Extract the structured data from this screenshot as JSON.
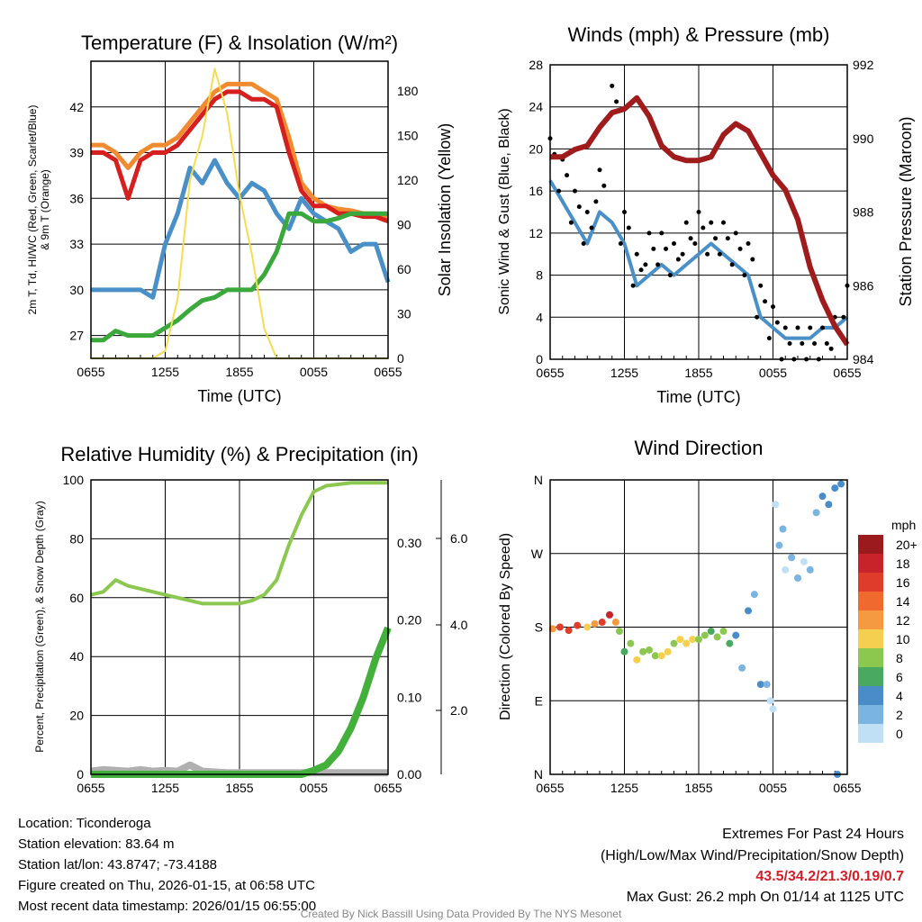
{
  "chart_data": [
    {
      "type": "line",
      "title": "Temperature (F) & Insolation (W/m²)",
      "xlabel": "Time (UTC)",
      "ylabel": "2m T, Td, HI/WC (Red, Green, Scarlet/Blue) & 9m T (Orange)",
      "y2label": "Solar Insolation (Yellow)",
      "xticks": [
        "0655",
        "1255",
        "1855",
        "0055",
        "0655"
      ],
      "yticks": [
        27,
        30,
        33,
        36,
        39,
        42
      ],
      "y2ticks": [
        0,
        30,
        60,
        90,
        120,
        150,
        180
      ],
      "ylim": [
        25.5,
        45
      ],
      "y2lim": [
        0,
        200
      ],
      "series": [
        {
          "name": "9m T",
          "color": "#f28a30",
          "axis": "left",
          "values": [
            39.5,
            39.5,
            39,
            38,
            39,
            39.5,
            39.5,
            40,
            41,
            42,
            43,
            43.5,
            43.5,
            43.5,
            43,
            42.5,
            40,
            37,
            36,
            35.5,
            35.3,
            35.2,
            35,
            35,
            34.8
          ]
        },
        {
          "name": "2m T",
          "color": "#d62020",
          "axis": "left",
          "values": [
            39,
            39,
            38.5,
            36,
            38.5,
            39,
            39,
            39.5,
            40.5,
            41.5,
            42.5,
            43,
            43,
            42.5,
            42.5,
            42,
            39,
            36.5,
            35.5,
            35.5,
            35,
            35,
            34.8,
            34.8,
            34.5
          ]
        },
        {
          "name": "WC",
          "color": "#4a90c8",
          "axis": "left",
          "values": [
            30,
            30,
            30,
            30,
            30,
            29.5,
            33,
            35,
            38,
            37,
            38.5,
            37,
            36,
            37,
            36.5,
            35,
            34,
            36,
            35,
            34.5,
            34,
            32.5,
            33,
            33,
            30.5
          ]
        },
        {
          "name": "Td",
          "color": "#3aa83a",
          "axis": "left",
          "values": [
            26.7,
            26.7,
            27.3,
            27,
            27,
            27,
            27.5,
            28,
            28.7,
            29.3,
            29.5,
            30,
            30,
            30,
            31,
            32.5,
            35,
            35,
            34.5,
            34.5,
            34.7,
            35,
            35,
            35,
            35
          ]
        },
        {
          "name": "Insolation",
          "color": "#f5dc50",
          "axis": "right",
          "values": [
            0,
            0,
            0,
            0,
            0,
            0,
            5,
            40,
            120,
            150,
            195,
            165,
            110,
            70,
            20,
            0,
            0,
            0,
            0,
            0,
            0,
            0,
            0,
            0,
            0
          ]
        }
      ]
    },
    {
      "type": "line",
      "title": "Winds (mph) & Pressure (mb)",
      "xlabel": "Time (UTC)",
      "ylabel": "Sonic Wind & Gust (Blue, Black)",
      "y2label": "Station Pressure (Maroon)",
      "xticks": [
        "0655",
        "1255",
        "1855",
        "0055",
        "0655"
      ],
      "yticks": [
        0,
        4,
        8,
        12,
        16,
        20,
        24,
        28
      ],
      "y2ticks": [
        984,
        986,
        988,
        990,
        992
      ],
      "ylim": [
        0,
        28
      ],
      "y2lim": [
        984,
        992
      ],
      "series": [
        {
          "name": "Wind",
          "color": "#4a90c8",
          "axis": "left",
          "values": [
            17,
            15,
            13,
            11,
            14,
            13,
            11,
            7,
            8,
            9,
            8,
            9,
            10,
            11,
            10,
            9,
            8,
            4,
            3,
            2,
            2,
            2,
            3,
            3,
            4
          ]
        },
        {
          "name": "Gust",
          "color": "#000000",
          "axis": "left",
          "type": "scatter",
          "values": [
            21,
            19,
            16,
            14,
            18,
            26,
            14,
            10,
            12,
            12,
            11,
            13,
            14,
            13,
            13,
            12,
            11,
            7,
            5,
            3,
            3,
            3,
            3,
            4,
            7
          ]
        },
        {
          "name": "Pressure",
          "color": "#a01c1c",
          "axis": "right",
          "values": [
            989.5,
            989.5,
            989.7,
            989.8,
            990.3,
            990.7,
            990.8,
            991.1,
            990.6,
            989.8,
            989.5,
            989.4,
            989.4,
            989.5,
            990.1,
            990.4,
            990.2,
            989.6,
            989,
            988.6,
            987.8,
            986.5,
            985.6,
            984.9,
            984.4
          ]
        }
      ]
    },
    {
      "type": "line",
      "title": "Relative Humidity (%) & Precipitation (in)",
      "ylabel": "Percent, Precipitation (Green), & Snow Depth (Gray)",
      "xticks": [
        "0655",
        "1255",
        "1855",
        "0055",
        "0655"
      ],
      "yticks": [
        0,
        20,
        40,
        60,
        80,
        100
      ],
      "y2ticks": [
        "0.00",
        "0.10",
        "0.20",
        "0.30"
      ],
      "y3ticks": [
        "2.0",
        "4.0",
        "6.0"
      ],
      "ylim": [
        0,
        100
      ],
      "y2lim": [
        0,
        0.3817
      ],
      "series": [
        {
          "name": "RH",
          "color": "#8cc850",
          "axis": "left",
          "values": [
            61,
            62,
            66,
            64,
            63,
            62,
            61,
            60,
            59,
            58,
            58,
            58,
            58,
            59,
            61,
            66,
            78,
            88,
            96,
            98,
            98.5,
            99,
            99,
            99,
            99
          ]
        },
        {
          "name": "Snow Depth",
          "color": "#b0b0b0",
          "axis": "right",
          "values": [
            0.004,
            0.006,
            0.005,
            0.004,
            0.006,
            0.004,
            0.005,
            0.004,
            0.012,
            0.004,
            0.003,
            0.002,
            0.002,
            0.002,
            0.002,
            0.002,
            0.002,
            0.002,
            0.002,
            0.002,
            0.002,
            0.002,
            0.002,
            0.002,
            0.002
          ]
        },
        {
          "name": "Precipitation",
          "color": "#44b03c",
          "axis": "right",
          "values": [
            0,
            0,
            0,
            0,
            0,
            0,
            0,
            0,
            0,
            0,
            0,
            0,
            0,
            0,
            0,
            0,
            0,
            0,
            0.005,
            0.012,
            0.03,
            0.06,
            0.1,
            0.15,
            0.19
          ]
        }
      ]
    },
    {
      "type": "scatter",
      "title": "Wind Direction",
      "ylabel": "Direction (Colored By Speed)",
      "xticks": [
        "0655",
        "1255",
        "1855",
        "0055",
        "0655"
      ],
      "yticks": [
        "N",
        "E",
        "S",
        "W",
        "N"
      ],
      "ylim": [
        0,
        360
      ],
      "colorbar": {
        "unit": "mph",
        "labels": [
          "20+",
          "18",
          "16",
          "14",
          "12",
          "10",
          "8",
          "6",
          "4",
          "2",
          "0"
        ],
        "colors": [
          "#9a1a1e",
          "#c8232a",
          "#e03c2c",
          "#f06a30",
          "#f59a40",
          "#f5d050",
          "#8cc850",
          "#4aa860",
          "#4a8cc8",
          "#7ab4e0",
          "#bfe0f5"
        ]
      },
      "points": [
        [
          0.2,
          178,
          12
        ],
        [
          0.8,
          180,
          16
        ],
        [
          1.5,
          176,
          17
        ],
        [
          2.2,
          182,
          16
        ],
        [
          3,
          180,
          11
        ],
        [
          3.6,
          184,
          13
        ],
        [
          4.2,
          186,
          17
        ],
        [
          4.8,
          195,
          18
        ],
        [
          5.3,
          186,
          12
        ],
        [
          5.6,
          175,
          8
        ],
        [
          6,
          150,
          6
        ],
        [
          6.5,
          160,
          8
        ],
        [
          7,
          140,
          10
        ],
        [
          7.5,
          150,
          8
        ],
        [
          8,
          152,
          9
        ],
        [
          8.5,
          145,
          9
        ],
        [
          9,
          145,
          10
        ],
        [
          9.5,
          150,
          11
        ],
        [
          10,
          160,
          9
        ],
        [
          10.5,
          165,
          10
        ],
        [
          11,
          160,
          10
        ],
        [
          11.5,
          165,
          11
        ],
        [
          12,
          165,
          9
        ],
        [
          12.5,
          170,
          8
        ],
        [
          13,
          175,
          7
        ],
        [
          13.5,
          168,
          9
        ],
        [
          14,
          175,
          8
        ],
        [
          14.5,
          160,
          6
        ],
        [
          15,
          170,
          4
        ],
        [
          15.5,
          130,
          3
        ],
        [
          16,
          200,
          4
        ],
        [
          16.5,
          220,
          3
        ],
        [
          17,
          110,
          4
        ],
        [
          17.5,
          110,
          2
        ],
        [
          17.8,
          90,
          1
        ],
        [
          18,
          80,
          1
        ],
        [
          18.2,
          330,
          1
        ],
        [
          18.5,
          280,
          2
        ],
        [
          18.8,
          300,
          2
        ],
        [
          19,
          250,
          1
        ],
        [
          19.5,
          265,
          3
        ],
        [
          20,
          240,
          2
        ],
        [
          20.5,
          260,
          1
        ],
        [
          21,
          250,
          2
        ],
        [
          21.5,
          320,
          3
        ],
        [
          22,
          340,
          4
        ],
        [
          22.5,
          330,
          4
        ],
        [
          23,
          350,
          5
        ],
        [
          23.5,
          355,
          4
        ],
        [
          23.2,
          0,
          4
        ]
      ]
    }
  ],
  "footer": {
    "location": "Location: Ticonderoga",
    "elevation": "Station elevation: 83.64 m",
    "latlon": "Station lat/lon: 43.8747; -73.4188",
    "created": "Figure created on Thu, 2026-01-15, at 06:58 UTC",
    "recent": "Most recent data timestamp: 2026/01/15 06:55:00",
    "credit": "Created By Nick Bassill Using Data Provided By The NYS Mesonet"
  },
  "extremes": {
    "title": "Extremes For Past 24 Hours",
    "subtitle": "(High/Low/Max Wind/Precipitation/Snow Depth)",
    "values": "43.5/34.2/21.3/0.19/0.7",
    "gust": "Max Gust: 26.2 mph On 01/14 at 1125 UTC",
    "value_color": "#d0202a"
  }
}
